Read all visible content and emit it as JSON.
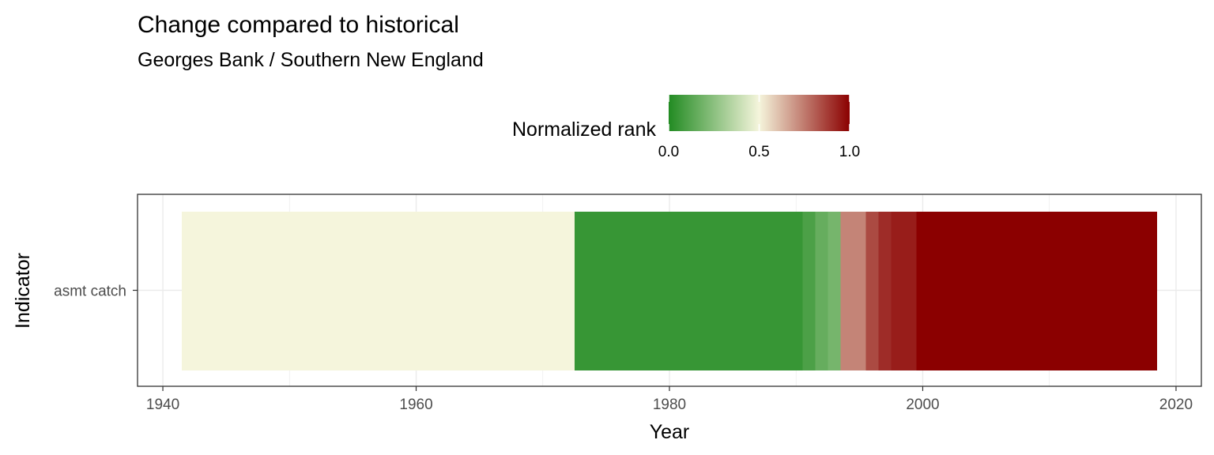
{
  "chart_data": {
    "type": "heatmap",
    "title": "Change compared to historical",
    "subtitle": "Georges Bank / Southern New England",
    "xlabel": "Year",
    "ylabel": "Indicator",
    "xlim": [
      1938,
      2022
    ],
    "x_ticks": [
      1940,
      1960,
      1980,
      2000,
      2020
    ],
    "x_tick_labels": [
      "1940",
      "1960",
      "1980",
      "2000",
      "2020"
    ],
    "categories": [
      "asmt catch"
    ],
    "grid": true,
    "legend": {
      "title": "Normalized rank",
      "position": "top",
      "ticks": [
        0.0,
        0.5,
        1.0
      ],
      "tick_labels": [
        "0.0",
        "0.5",
        "1.0"
      ],
      "colors": {
        "low": "#228b22",
        "mid": "#f5f5dc",
        "high": "#8b0000"
      }
    },
    "series": [
      {
        "indicator": "asmt catch",
        "cells": [
          {
            "year_start": 1941.5,
            "year_end": 1972.5,
            "rank": 0.5
          },
          {
            "year_start": 1972.5,
            "year_end": 1990.5,
            "rank": 0.05
          },
          {
            "year_start": 1990.5,
            "year_end": 1991.5,
            "rank": 0.1
          },
          {
            "year_start": 1991.5,
            "year_end": 1992.5,
            "rank": 0.16
          },
          {
            "year_start": 1992.5,
            "year_end": 1993.5,
            "rank": 0.2
          },
          {
            "year_start": 1993.5,
            "year_end": 1995.5,
            "rank": 0.73
          },
          {
            "year_start": 1995.5,
            "year_end": 1996.5,
            "rank": 0.85
          },
          {
            "year_start": 1996.5,
            "year_end": 1997.5,
            "rank": 0.91
          },
          {
            "year_start": 1997.5,
            "year_end": 1999.5,
            "rank": 0.94
          },
          {
            "year_start": 1999.5,
            "year_end": 2018.5,
            "rank": 1.0
          }
        ]
      }
    ]
  }
}
